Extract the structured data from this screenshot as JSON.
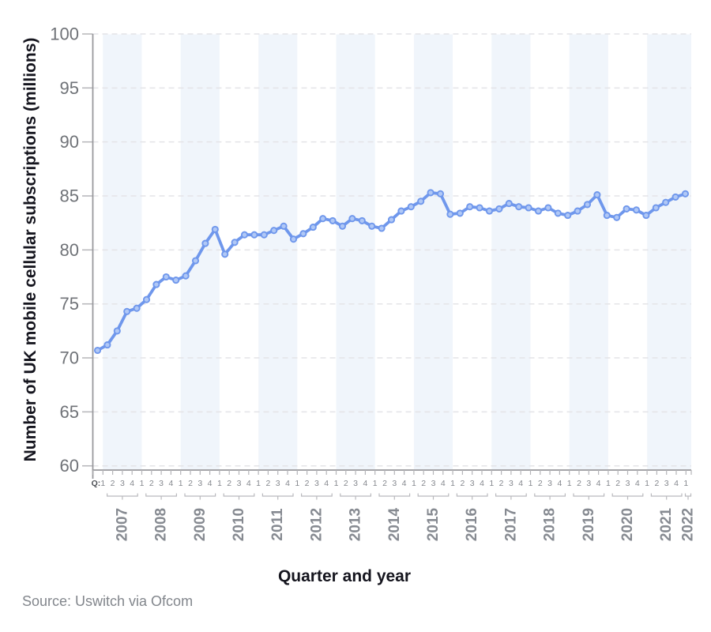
{
  "page": {
    "source_note": "Source: Uswitch via Ofcom"
  },
  "chart_data": {
    "type": "line",
    "title": "",
    "xlabel": "Quarter and year",
    "ylabel": "Number of UK mobile cellular subscriptions (millions)",
    "series_name": "UK mobile cellular subscriptions (millions)",
    "ylim": [
      60,
      100
    ],
    "yticks": [
      100,
      95,
      90,
      85,
      80,
      75,
      70,
      65,
      60
    ],
    "grid": "dashed horizontal",
    "legend": "none",
    "quarter_prefix": "Q:",
    "groups": [
      {
        "year": "2007",
        "quarters": [
          "1",
          "2",
          "3",
          "4"
        ],
        "values": [
          70.7,
          71.2,
          72.5,
          74.3
        ]
      },
      {
        "year": "2008",
        "quarters": [
          "1",
          "2",
          "3",
          "4"
        ],
        "values": [
          74.6,
          75.4,
          76.8,
          77.5
        ]
      },
      {
        "year": "2009",
        "quarters": [
          "1",
          "2",
          "3",
          "4"
        ],
        "values": [
          77.2,
          77.6,
          79.0,
          80.6
        ]
      },
      {
        "year": "2010",
        "quarters": [
          "1",
          "2",
          "3",
          "4"
        ],
        "values": [
          81.9,
          79.6,
          80.7,
          81.4
        ]
      },
      {
        "year": "2011",
        "quarters": [
          "1",
          "2",
          "3",
          "4"
        ],
        "values": [
          81.4,
          81.4,
          81.8,
          82.2
        ]
      },
      {
        "year": "2012",
        "quarters": [
          "1",
          "2",
          "3",
          "4"
        ],
        "values": [
          81.0,
          81.5,
          82.1,
          82.9
        ]
      },
      {
        "year": "2013",
        "quarters": [
          "1",
          "2",
          "3",
          "4"
        ],
        "values": [
          82.7,
          82.2,
          82.9,
          82.7
        ]
      },
      {
        "year": "2014",
        "quarters": [
          "1",
          "2",
          "3",
          "4"
        ],
        "values": [
          82.2,
          82.0,
          82.8,
          83.6
        ]
      },
      {
        "year": "2015",
        "quarters": [
          "1",
          "2",
          "3",
          "4"
        ],
        "values": [
          84.0,
          84.5,
          85.3,
          85.2
        ]
      },
      {
        "year": "2016",
        "quarters": [
          "1",
          "2",
          "3",
          "4"
        ],
        "values": [
          83.3,
          83.4,
          84.0,
          83.9
        ]
      },
      {
        "year": "2017",
        "quarters": [
          "1",
          "2",
          "3",
          "4"
        ],
        "values": [
          83.6,
          83.8,
          84.3,
          84.0
        ]
      },
      {
        "year": "2018",
        "quarters": [
          "1",
          "2",
          "3",
          "4"
        ],
        "values": [
          83.9,
          83.6,
          83.9,
          83.4
        ]
      },
      {
        "year": "2019",
        "quarters": [
          "1",
          "2",
          "3",
          "4"
        ],
        "values": [
          83.2,
          83.6,
          84.2,
          85.1
        ]
      },
      {
        "year": "2020",
        "quarters": [
          "1",
          "2",
          "3",
          "4"
        ],
        "values": [
          83.2,
          83.0,
          83.8,
          83.7
        ]
      },
      {
        "year": "2021",
        "quarters": [
          "1",
          "2",
          "3",
          "4"
        ],
        "values": [
          83.2,
          83.9,
          84.4,
          84.9
        ]
      },
      {
        "year": "2022",
        "quarters": [
          "1"
        ],
        "values": [
          85.2
        ]
      }
    ],
    "colors": {
      "line": "#6f97ec",
      "marker_fill": "#b0c8f6",
      "band": "#f0f5fb",
      "grid": "#e4e4e7",
      "axis": "#98989c",
      "tick": "#b5b5b9",
      "ytick_text": "#6f7277",
      "quarter_text": "#85888e",
      "q_prefix_text": "#4b4e54",
      "year_text": "#868a91",
      "bracket": "#b9b9bd"
    }
  }
}
